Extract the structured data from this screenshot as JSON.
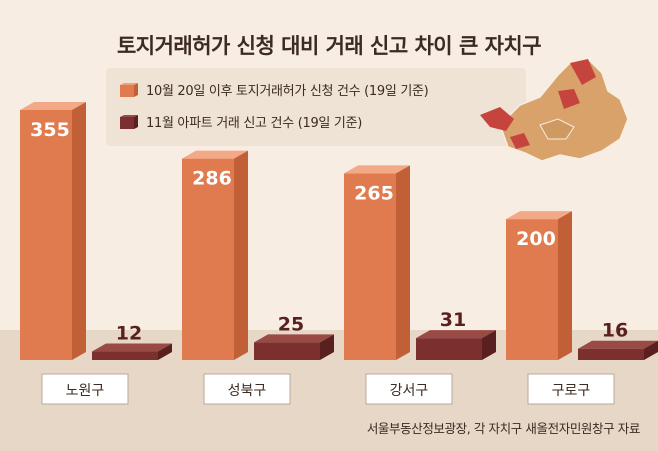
{
  "title": "토지거래허가 신청 대비 거래 신고 차이 큰 자치구",
  "legend": [
    {
      "label": "10월 20일 이후 토지거래허가 신청 건수 (19일 기준)",
      "color": "#e07a4f"
    },
    {
      "label": "11월 아파트 거래 신고 건수 (19일 기준)",
      "color": "#7b2f2f"
    }
  ],
  "source": "서울부동산정보광장, 각 자치구 새올전자민원창구 자료",
  "colors": {
    "orange": "#e07a4f",
    "maroon": "#7b2f2f",
    "background": "#f7ede2",
    "floor": "#e2d3c2"
  },
  "chart_data": {
    "type": "bar",
    "title": "토지거래허가 신청 대비 거래 신고 차이 큰 자치구",
    "categories": [
      "노원구",
      "성북구",
      "강서구",
      "구로구"
    ],
    "series": [
      {
        "name": "10월 20일 이후 토지거래허가 신청 건수 (19일 기준)",
        "values": [
          355,
          286,
          265,
          200
        ]
      },
      {
        "name": "11월 아파트 거래 신고 건수 (19일 기준)",
        "values": [
          12,
          25,
          31,
          16
        ]
      }
    ],
    "data_labels": true,
    "grid": false,
    "legend_position": "top"
  }
}
